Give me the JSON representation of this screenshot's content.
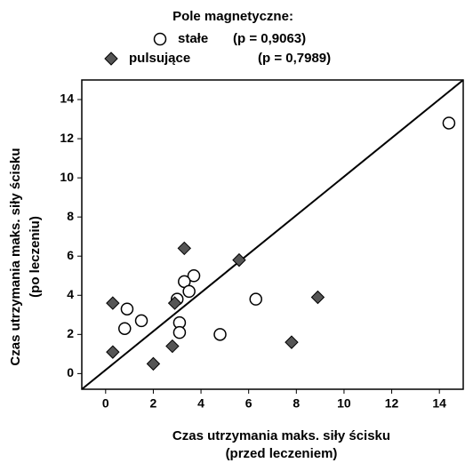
{
  "chart_data": {
    "type": "scatter",
    "legend_title": "Pole magnetyczne:",
    "x_label": [
      "Czas utrzymania maks. siły ścisku",
      "(przed leczeniem)"
    ],
    "y_label": [
      "Czas utrzymania maks. siły ścisku",
      "(po leczeniu)"
    ],
    "xlim": [
      -1,
      15
    ],
    "ylim": [
      -0.8,
      15
    ],
    "xticks": [
      0,
      2,
      4,
      6,
      8,
      10,
      12,
      14
    ],
    "yticks": [
      0,
      2,
      4,
      6,
      8,
      10,
      12,
      14
    ],
    "reference_line": {
      "x": [
        -1,
        15
      ],
      "y": [
        -0.8,
        15
      ]
    },
    "series": [
      {
        "name": "stałe",
        "stat": "(p = 0,9063)",
        "marker": "circle",
        "color": "#ffffff",
        "x": [
          14.4,
          6.3,
          4.8,
          3.7,
          3.3,
          3.5,
          3.0,
          3.1,
          3.1,
          0.9,
          0.8,
          1.5
        ],
        "values": [
          12.8,
          3.8,
          2.0,
          5.0,
          4.7,
          4.2,
          3.8,
          2.6,
          2.1,
          3.3,
          2.3,
          2.7
        ]
      },
      {
        "name": "pulsujące",
        "stat": "(p = 0,7989)",
        "marker": "diamond",
        "color": "#555555",
        "x": [
          3.3,
          5.6,
          8.9,
          7.8,
          0.3,
          0.3,
          2.0,
          2.8,
          2.9
        ],
        "values": [
          6.4,
          5.8,
          3.9,
          1.6,
          3.6,
          1.1,
          0.5,
          1.4,
          3.6
        ]
      }
    ]
  }
}
